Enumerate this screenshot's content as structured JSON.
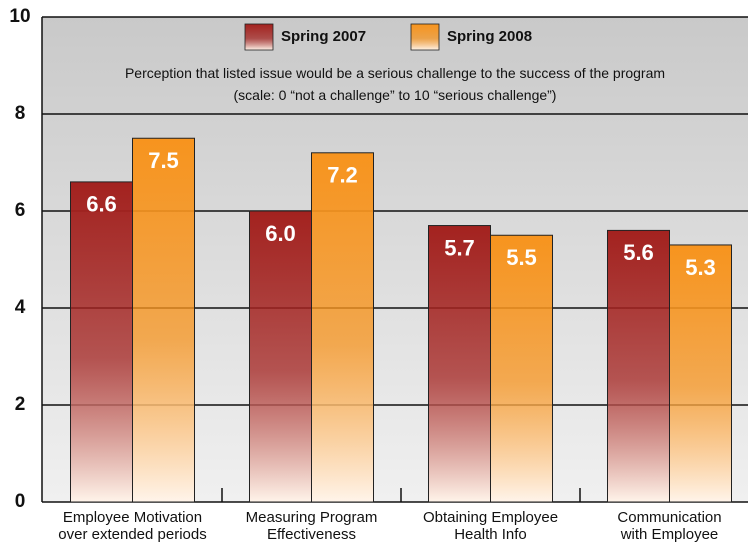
{
  "chart_data": {
    "type": "bar",
    "subtitle": "Perception that listed issue would be a serious challenge to the success of the program\n(scale: 0 “not a challenge” to 10 “serious challenge”)",
    "categories": [
      "Employee Motivation\nover extended periods",
      "Measuring Program\nEffectiveness",
      "Obtaining Employee\nHealth Info",
      "Communication\nwith Employee"
    ],
    "series": [
      {
        "name": "Spring 2007",
        "color": "#a3221f",
        "values": [
          6.6,
          6.0,
          5.7,
          5.6
        ],
        "value_labels": [
          "6.6",
          "6.0",
          "5.7",
          "5.6"
        ]
      },
      {
        "name": "Spring 2008",
        "color": "#f7941e",
        "values": [
          7.5,
          7.2,
          5.5,
          5.3
        ],
        "value_labels": [
          "7.5",
          "7.2",
          "5.5",
          "5.3"
        ]
      }
    ],
    "ylim": [
      0,
      10
    ],
    "yticks": [
      0,
      2,
      4,
      6,
      8,
      10
    ],
    "grid": true
  }
}
